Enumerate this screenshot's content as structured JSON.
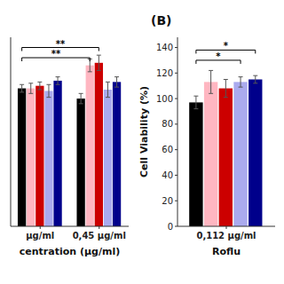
{
  "chart_data": [
    {
      "type": "bar",
      "categories": [
        "µg/ml",
        "0,45 µg/ml"
      ],
      "series": [
        {
          "color": "#000000",
          "values": [
            108,
            100
          ],
          "errors": [
            3,
            4
          ]
        },
        {
          "color": "#FFB6C1",
          "values": [
            108,
            126
          ],
          "errors": [
            4,
            5
          ]
        },
        {
          "color": "#CC0000",
          "values": [
            110,
            128
          ],
          "errors": [
            3,
            6
          ]
        },
        {
          "color": "#AAAAEE",
          "values": [
            106,
            107
          ],
          "errors": [
            5,
            6
          ]
        },
        {
          "color": "#00008B",
          "values": [
            114,
            113
          ],
          "errors": [
            3,
            4
          ]
        }
      ],
      "xlabel": "centration (µg/ml)",
      "ylim": [
        0,
        148
      ],
      "yticks": [],
      "tick_labels": "x",
      "grid": false,
      "annotations": [
        {
          "text": "**",
          "y": 132,
          "from": {
            "series": 0,
            "category": 0
          },
          "to": {
            "series": 1,
            "category": 1
          }
        },
        {
          "text": "**",
          "y": 140,
          "from": {
            "series": 0,
            "category": 0
          },
          "to": {
            "series": 2,
            "category": 1
          }
        }
      ]
    },
    {
      "type": "bar",
      "title": "(B)",
      "categories": [
        "0,112 µg/ml"
      ],
      "series": [
        {
          "color": "#000000",
          "values": [
            97
          ],
          "errors": [
            5
          ]
        },
        {
          "color": "#FFB6C1",
          "values": [
            113
          ],
          "errors": [
            9
          ]
        },
        {
          "color": "#CC0000",
          "values": [
            108
          ],
          "errors": [
            7
          ]
        },
        {
          "color": "#AAAAEE",
          "values": [
            113
          ],
          "errors": [
            4
          ]
        },
        {
          "color": "#00008B",
          "values": [
            115
          ],
          "errors": [
            3
          ]
        }
      ],
      "xlabel": "Roflu",
      "ylabel": "Cell Viability (%)",
      "ylim": [
        0,
        148
      ],
      "yticks": [
        0,
        20,
        40,
        60,
        80,
        100,
        120,
        140
      ],
      "grid": false,
      "annotations": [
        {
          "text": "*",
          "y": 130,
          "from": {
            "series": 0,
            "category": 0
          },
          "to": {
            "series": 3,
            "category": 0
          }
        },
        {
          "text": "*",
          "y": 138,
          "from": {
            "series": 0,
            "category": 0
          },
          "to": {
            "series": 4,
            "category": 0
          }
        }
      ]
    }
  ]
}
